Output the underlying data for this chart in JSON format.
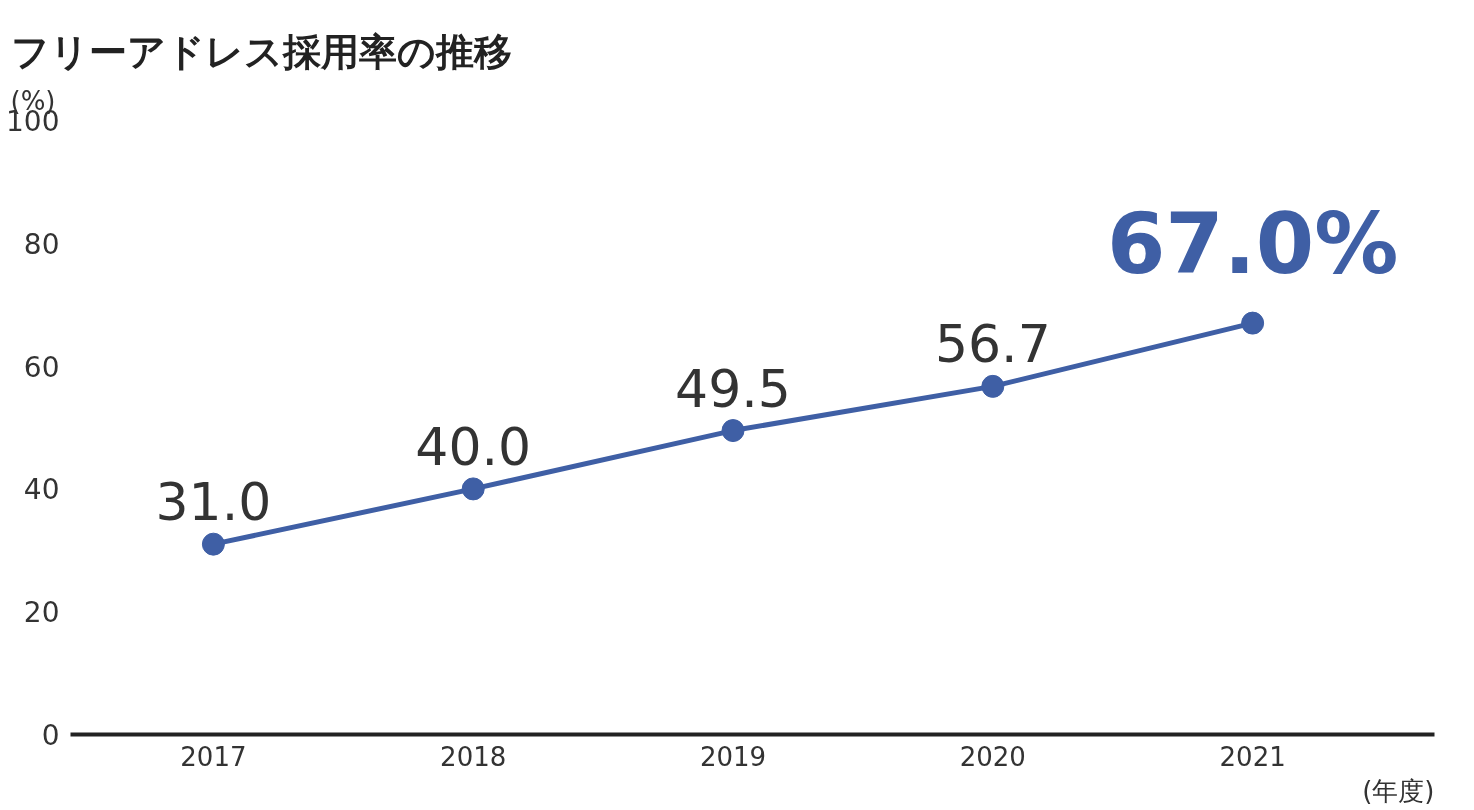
{
  "chart_data": {
    "type": "line",
    "title": "フリーアドレス採用率の推移",
    "xlabel": "(年度)",
    "ylabel": "(%)",
    "categories": [
      "2017",
      "2018",
      "2019",
      "2020",
      "2021"
    ],
    "series": [
      {
        "color": "#3f5fa5",
        "values": [
          31.0,
          40.0,
          49.5,
          56.7,
          67.0
        ],
        "value_labels": [
          "31.0",
          "40.0",
          "49.5",
          "56.7",
          "67.0%"
        ]
      }
    ],
    "ylim": [
      0,
      100
    ],
    "yticks": [
      0,
      20,
      40,
      60,
      80,
      100
    ],
    "grid": false,
    "marker": "circle",
    "line_style": "solid"
  }
}
